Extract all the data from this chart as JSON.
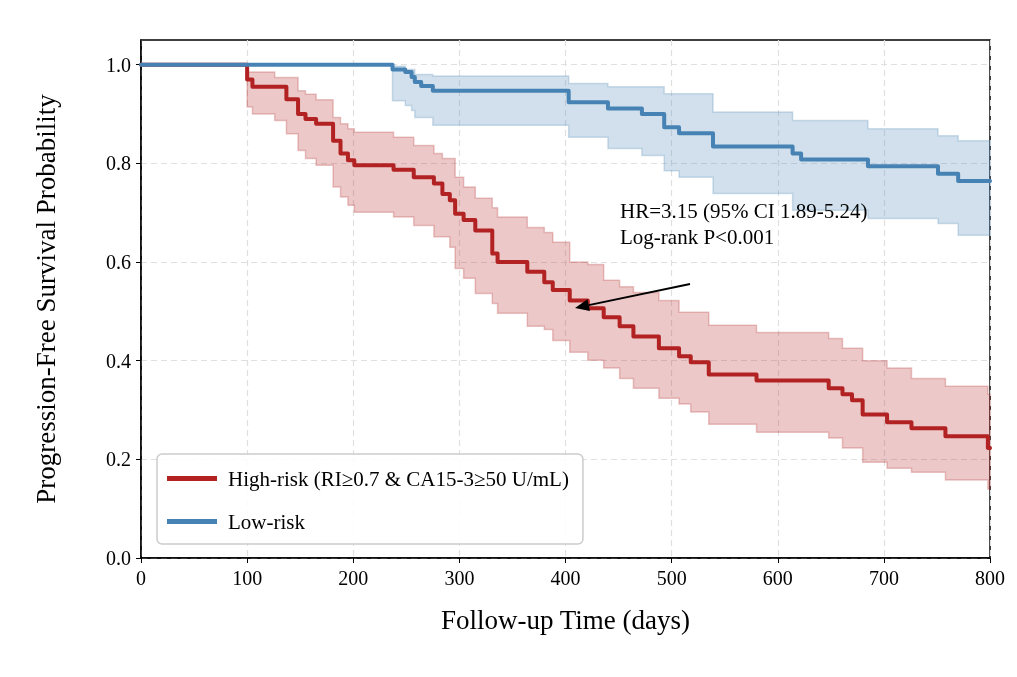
{
  "chart_data": {
    "type": "step",
    "xlabel": "Follow-up Time (days)",
    "ylabel": "Progression-Free Survival Probability",
    "xlim": [
      0,
      800
    ],
    "xticks": [
      0,
      100,
      200,
      300,
      400,
      500,
      600,
      700,
      800
    ],
    "ylim": [
      0,
      1.05
    ],
    "yticks": [
      {
        "value": 0,
        "label": "0.0"
      },
      {
        "value": 0.2,
        "label": "0.2"
      },
      {
        "value": 0.4,
        "label": "0.4"
      },
      {
        "value": 0.6,
        "label": "0.6"
      },
      {
        "value": 0.8,
        "label": "0.8"
      },
      {
        "value": 1,
        "label": "1.0"
      }
    ],
    "grid": true,
    "legend": "bottom left",
    "marker": "none",
    "line_style": "solid",
    "annotations": [
      "HR=3.15 (95% CI 1.89-5.24)\nLog-rank P<0.001"
    ],
    "series": [
      {
        "name": "High-risk (RI≥0.7 & CA15-3≥50 U/mL)",
        "color": "#b22222",
        "x": [
          0,
          100,
          105,
          126,
          137,
          148,
          155,
          165,
          181,
          188,
          195,
          201,
          238,
          257,
          276,
          284,
          291,
          296,
          304,
          315,
          331,
          336,
          364,
          380,
          388,
          404,
          421,
          436,
          451,
          464,
          488,
          507,
          518,
          535,
          580,
          648,
          661,
          670,
          680,
          703,
          726,
          758,
          798,
          800
        ],
        "values": [
          1,
          0.97,
          0.955,
          0.955,
          0.93,
          0.9,
          0.89,
          0.88,
          0.846,
          0.82,
          0.806,
          0.796,
          0.787,
          0.772,
          0.759,
          0.738,
          0.725,
          0.698,
          0.685,
          0.664,
          0.617,
          0.6,
          0.58,
          0.559,
          0.543,
          0.522,
          0.506,
          0.488,
          0.47,
          0.449,
          0.425,
          0.409,
          0.397,
          0.372,
          0.36,
          0.344,
          0.332,
          0.32,
          0.291,
          0.275,
          0.263,
          0.247,
          0.223,
          0.223
        ],
        "lower": [
          1,
          0.914,
          0.9,
          0.887,
          0.86,
          0.826,
          0.81,
          0.796,
          0.752,
          0.732,
          0.715,
          0.701,
          0.691,
          0.674,
          0.651,
          0.651,
          0.63,
          0.587,
          0.567,
          0.536,
          0.516,
          0.496,
          0.47,
          0.463,
          0.441,
          0.417,
          0.401,
          0.385,
          0.364,
          0.344,
          0.324,
          0.312,
          0.296,
          0.271,
          0.255,
          0.243,
          0.223,
          0.223,
          0.194,
          0.182,
          0.174,
          0.158,
          0.14,
          0.14
        ],
        "upper": [
          1,
          0.985,
          0.985,
          0.974,
          0.974,
          0.947,
          0.94,
          0.929,
          0.893,
          0.88,
          0.87,
          0.863,
          0.853,
          0.836,
          0.82,
          0.81,
          0.81,
          0.772,
          0.752,
          0.729,
          0.71,
          0.691,
          0.67,
          0.66,
          0.64,
          0.6,
          0.595,
          0.563,
          0.55,
          0.538,
          0.522,
          0.498,
          0.498,
          0.472,
          0.457,
          0.445,
          0.425,
          0.425,
          0.4,
          0.385,
          0.364,
          0.348,
          0.332,
          0.332
        ]
      },
      {
        "name": "Low-risk",
        "color": "#4682b4",
        "x": [
          0,
          237,
          249,
          255,
          258,
          264,
          275,
          403,
          440,
          472,
          493,
          507,
          539,
          614,
          622,
          685,
          751,
          770,
          800
        ],
        "values": [
          1,
          0.99,
          0.985,
          0.975,
          0.965,
          0.957,
          0.947,
          0.924,
          0.911,
          0.9,
          0.873,
          0.861,
          0.834,
          0.82,
          0.808,
          0.794,
          0.779,
          0.764,
          0.764
        ],
        "lower": [
          1,
          0.927,
          0.917,
          0.907,
          0.893,
          0.893,
          0.877,
          0.853,
          0.83,
          0.816,
          0.785,
          0.772,
          0.739,
          0.705,
          0.705,
          0.688,
          0.678,
          0.654,
          0.654
        ],
        "upper": [
          1,
          0.997,
          0.99,
          0.99,
          0.98,
          0.98,
          0.977,
          0.962,
          0.955,
          0.955,
          0.941,
          0.941,
          0.904,
          0.887,
          0.887,
          0.87,
          0.856,
          0.846,
          0.846
        ]
      }
    ]
  }
}
